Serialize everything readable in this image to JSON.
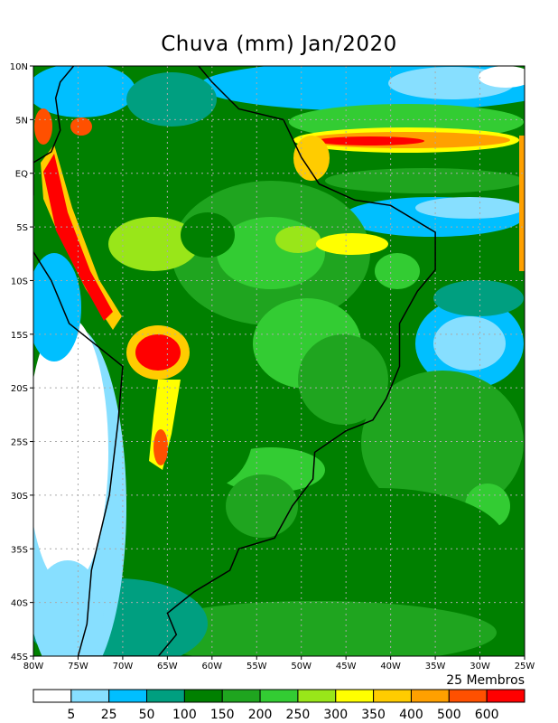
{
  "title": "Chuva (mm) Jan/2020",
  "members_label": "25 Membros",
  "map": {
    "variable": "Chuva (mm)",
    "period": "Jan/2020",
    "lon_range": [
      -80,
      -25
    ],
    "lat_range": [
      -45,
      10
    ],
    "lon_ticks": [
      "80W",
      "75W",
      "70W",
      "65W",
      "60W",
      "55W",
      "50W",
      "45W",
      "40W",
      "35W",
      "30W",
      "25W"
    ],
    "lat_ticks": [
      "10N",
      "5N",
      "EQ",
      "5S",
      "10S",
      "15S",
      "20S",
      "25S",
      "30S",
      "35S",
      "40S",
      "45S"
    ]
  },
  "colorbar": {
    "labels": [
      "5",
      "25",
      "50",
      "100",
      "150",
      "200",
      "250",
      "300",
      "350",
      "400",
      "500",
      "600"
    ],
    "colors": [
      "#ffffff",
      "#87dfff",
      "#00bfff",
      "#009f80",
      "#008000",
      "#1fa51f",
      "#33cc33",
      "#99e619",
      "#ffff00",
      "#ffcc00",
      "#ffa000",
      "#ff5000",
      "#ff0000"
    ]
  }
}
